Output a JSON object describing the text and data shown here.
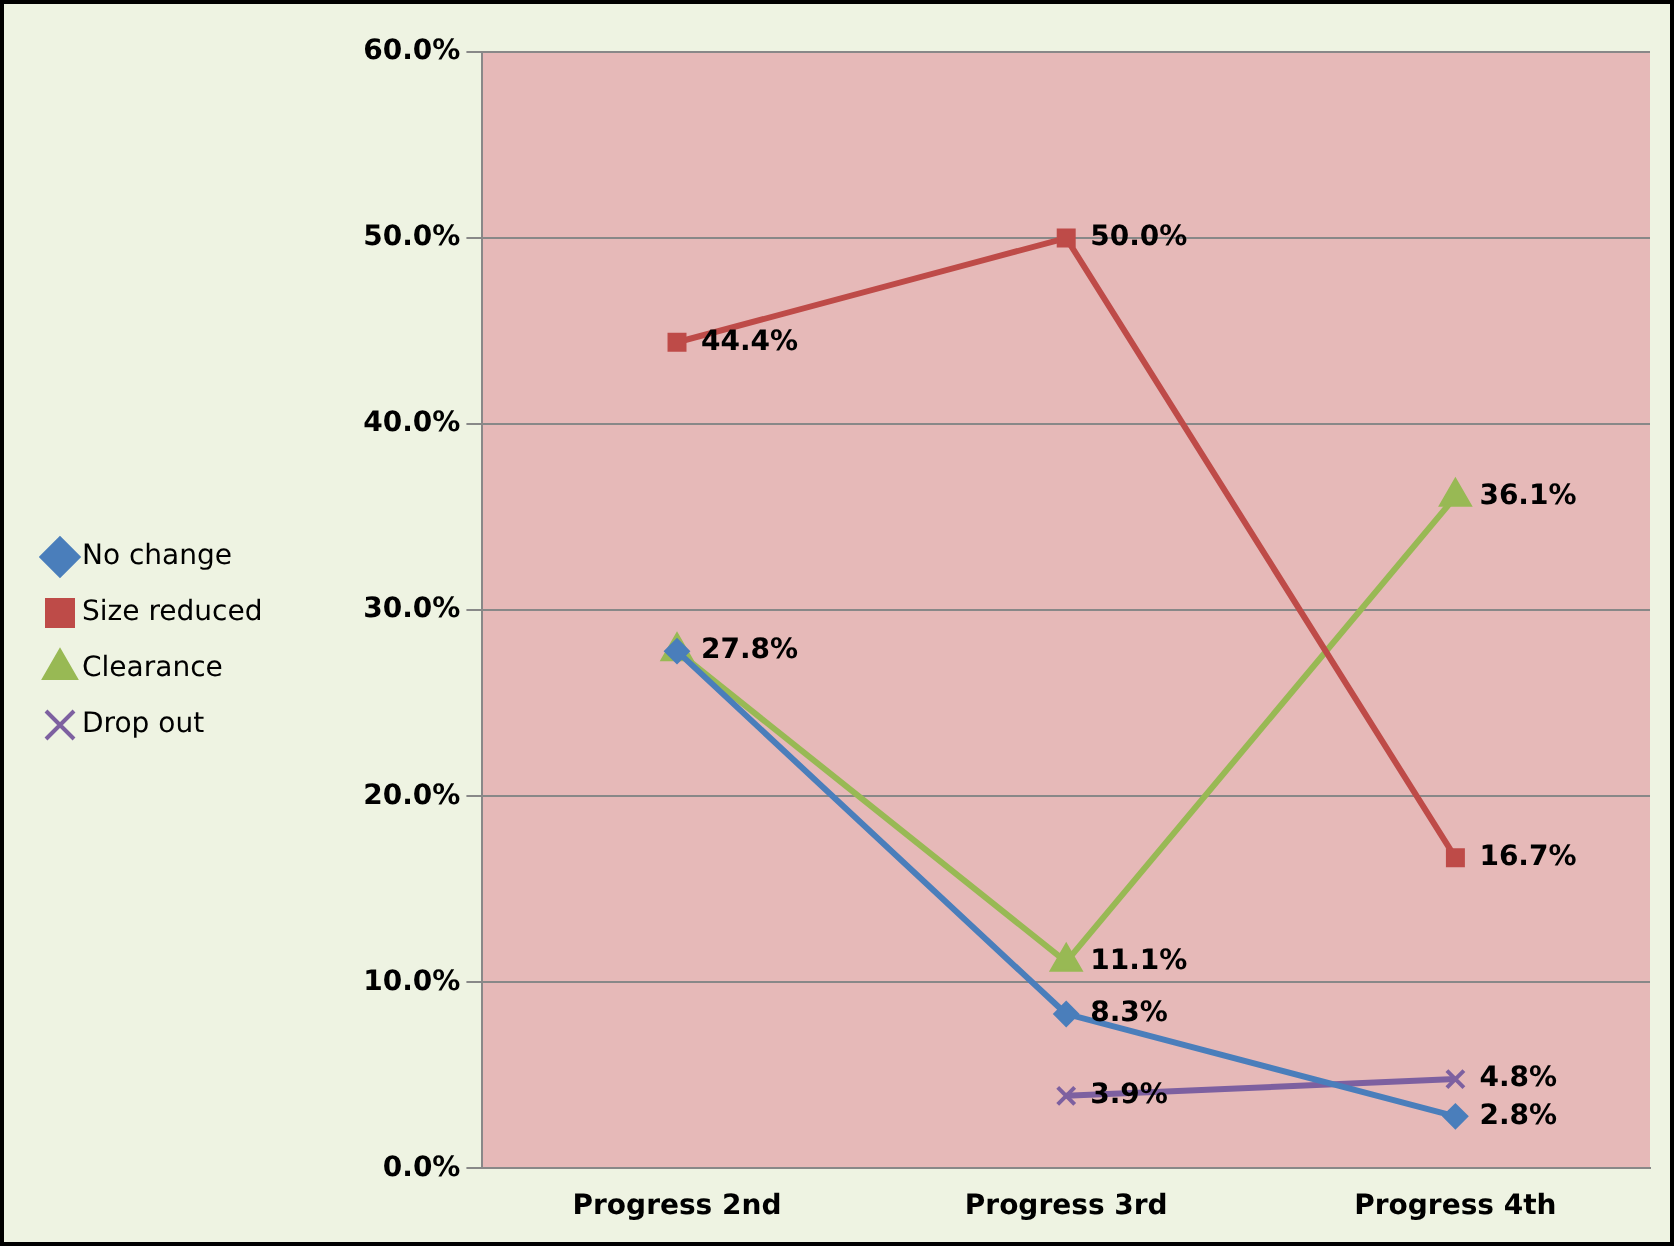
{
  "chart_data": {
    "type": "line",
    "categories": [
      "Progress 2nd",
      "Progress 3rd",
      "Progress 4th"
    ],
    "series": [
      {
        "name": "No change",
        "color": "#4a7ebb",
        "marker": "diamond",
        "values": [
          27.8,
          8.3,
          2.8
        ],
        "value_labels": [
          "27.8%",
          "8.3%",
          "2.8%"
        ]
      },
      {
        "name": "Size reduced",
        "color": "#be4b48",
        "marker": "square",
        "values": [
          44.4,
          50.0,
          16.7
        ],
        "value_labels": [
          "44.4%",
          "50.0%",
          "16.7%"
        ]
      },
      {
        "name": "Clearance",
        "color": "#98b954",
        "marker": "triangle",
        "values": [
          27.8,
          11.1,
          36.1
        ],
        "value_labels": [
          null,
          "11.1%",
          "36.1%"
        ]
      },
      {
        "name": "Drop out",
        "color": "#7d60a0",
        "marker": "cross",
        "values": [
          null,
          3.9,
          4.8
        ],
        "value_labels": [
          null,
          "3.9%",
          "4.8%"
        ]
      }
    ],
    "ylim": [
      0,
      60
    ],
    "yticks": [
      {
        "value": 0,
        "label": "0.0%"
      },
      {
        "value": 10,
        "label": "10.0%"
      },
      {
        "value": 20,
        "label": "20.0%"
      },
      {
        "value": 30,
        "label": "30.0%"
      },
      {
        "value": 40,
        "label": "40.0%"
      },
      {
        "value": 50,
        "label": "50.0%"
      },
      {
        "value": 60,
        "label": "60.0%"
      }
    ],
    "grid": "y",
    "legend": "left",
    "line_style": "solid"
  }
}
